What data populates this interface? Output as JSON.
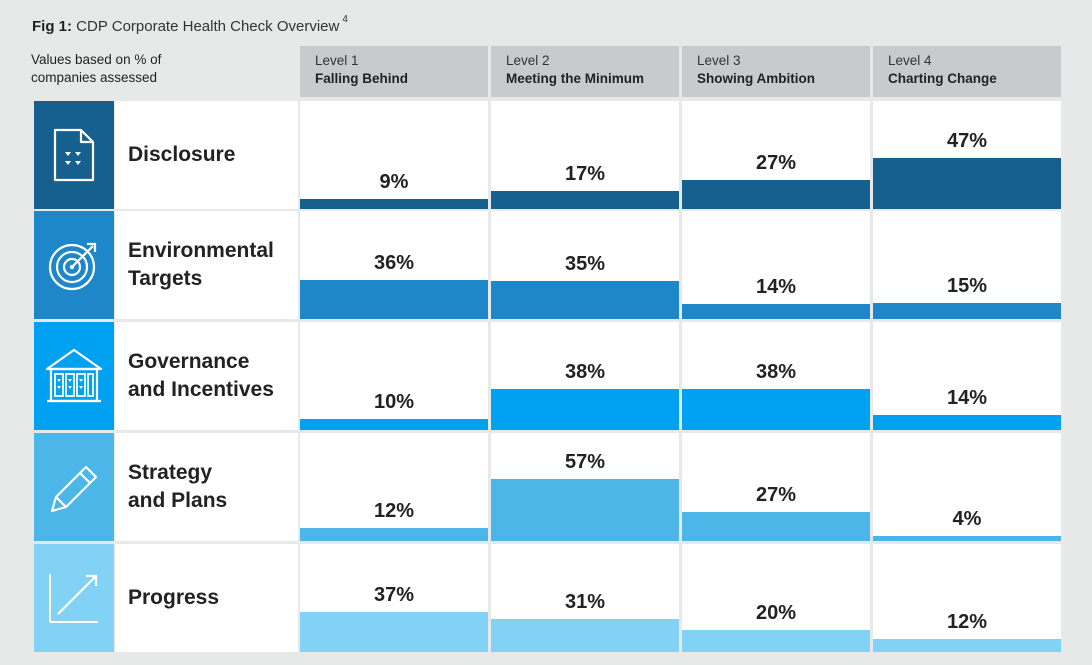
{
  "figure": {
    "label": "Fig 1:",
    "title": "CDP Corporate Health Check Overview",
    "footnote": "4",
    "note_line1": "Values based on % of",
    "note_line2": "companies assessed"
  },
  "chart_data": {
    "type": "table",
    "title": "CDP Corporate Health Check Overview",
    "unit": "% of companies assessed",
    "columns": [
      {
        "level": "Level 1",
        "name": "Falling Behind"
      },
      {
        "level": "Level 2",
        "name": "Meeting the Minimum"
      },
      {
        "level": "Level 3",
        "name": "Showing Ambition"
      },
      {
        "level": "Level 4",
        "name": "Charting Change"
      }
    ],
    "rows": [
      {
        "line1": "Disclosure",
        "line2": "",
        "icon": "document-icon",
        "color": "#16608f",
        "values": [
          9,
          17,
          27,
          47
        ],
        "labels": [
          "9%",
          "17%",
          "27%",
          "47%"
        ]
      },
      {
        "line1": "Environmental",
        "line2": "Targets",
        "icon": "target-icon",
        "color": "#1e87c9",
        "values": [
          36,
          35,
          14,
          15
        ],
        "labels": [
          "36%",
          "35%",
          "14%",
          "15%"
        ]
      },
      {
        "line1": "Governance",
        "line2": "and Incentives",
        "icon": "building-icon",
        "color": "#00a1f1",
        "values": [
          10,
          38,
          38,
          14
        ],
        "labels": [
          "10%",
          "38%",
          "38%",
          "14%"
        ]
      },
      {
        "line1": "Strategy",
        "line2": "and Plans",
        "icon": "pencil-icon",
        "color": "#4cb6e8",
        "values": [
          12,
          57,
          27,
          4
        ],
        "labels": [
          "12%",
          "57%",
          "27%",
          "4%"
        ]
      },
      {
        "line1": "Progress",
        "line2": "",
        "icon": "trend-arrow-icon",
        "color": "#81d2f5",
        "values": [
          37,
          31,
          20,
          12
        ],
        "labels": [
          "37%",
          "31%",
          "20%",
          "12%"
        ]
      }
    ],
    "scale_max": 50
  }
}
